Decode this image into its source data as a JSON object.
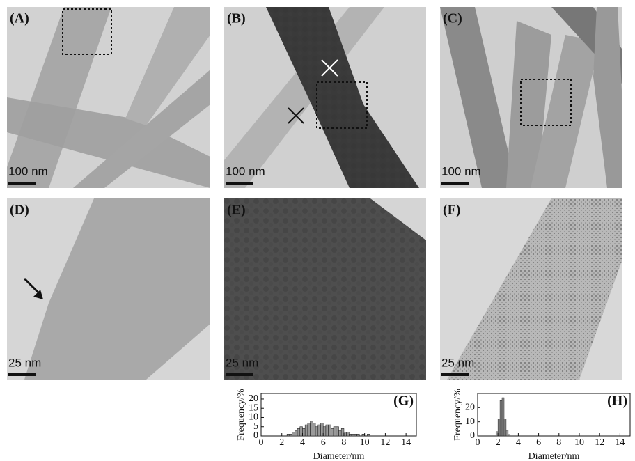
{
  "panels": [
    {
      "label": "(A)",
      "scale_bar": "100 nm"
    },
    {
      "label": "(B)",
      "scale_bar": "100 nm"
    },
    {
      "label": "(C)",
      "scale_bar": "100 nm"
    },
    {
      "label": "(D)",
      "scale_bar": "25 nm"
    },
    {
      "label": "(E)",
      "scale_bar": "25 nm"
    },
    {
      "label": "(F)",
      "scale_bar": "25 nm"
    }
  ],
  "chart_data": [
    {
      "type": "histogram",
      "title": "(G)",
      "x_label": "Diameter/nm",
      "y_label": "Frequency/%",
      "color": "#9a9a9a",
      "bins": [
        2.5,
        2.75,
        3,
        3.25,
        3.5,
        3.75,
        4,
        4.25,
        4.5,
        4.75,
        5,
        5.25,
        5.5,
        5.75,
        6,
        6.25,
        6.5,
        6.75,
        7,
        7.25,
        7.5,
        7.75,
        8,
        8.25,
        8.5,
        8.75,
        9,
        9.25,
        9.5,
        9.75,
        10,
        10.25,
        10.5
      ],
      "values": [
        1,
        1,
        2,
        3,
        4,
        5,
        4,
        6,
        7,
        8,
        7,
        5,
        6,
        7,
        5,
        6,
        6,
        4,
        5,
        5,
        3,
        4,
        2,
        2,
        1,
        1,
        1,
        1,
        0,
        1,
        0,
        1
      ],
      "xlim": [
        0,
        15
      ],
      "xticks": [
        0,
        2,
        4,
        6,
        8,
        10,
        12,
        14
      ],
      "ylim": [
        0,
        23
      ],
      "yticks": [
        0,
        5,
        10,
        15,
        20
      ]
    },
    {
      "type": "histogram",
      "title": "(H)",
      "x_label": "Diameter/nm",
      "y_label": "Frequency/%",
      "color": "#9a9a9a",
      "bins": [
        1.8,
        2.0,
        2.2,
        2.4,
        2.6,
        2.8,
        3.0,
        3.2
      ],
      "values": [
        3,
        12,
        25,
        27,
        12,
        4,
        1
      ],
      "xlim": [
        0,
        15
      ],
      "xticks": [
        0,
        2,
        4,
        6,
        8,
        10,
        12,
        14
      ],
      "ylim": [
        0,
        30
      ],
      "yticks": [
        0,
        10,
        20
      ]
    }
  ]
}
